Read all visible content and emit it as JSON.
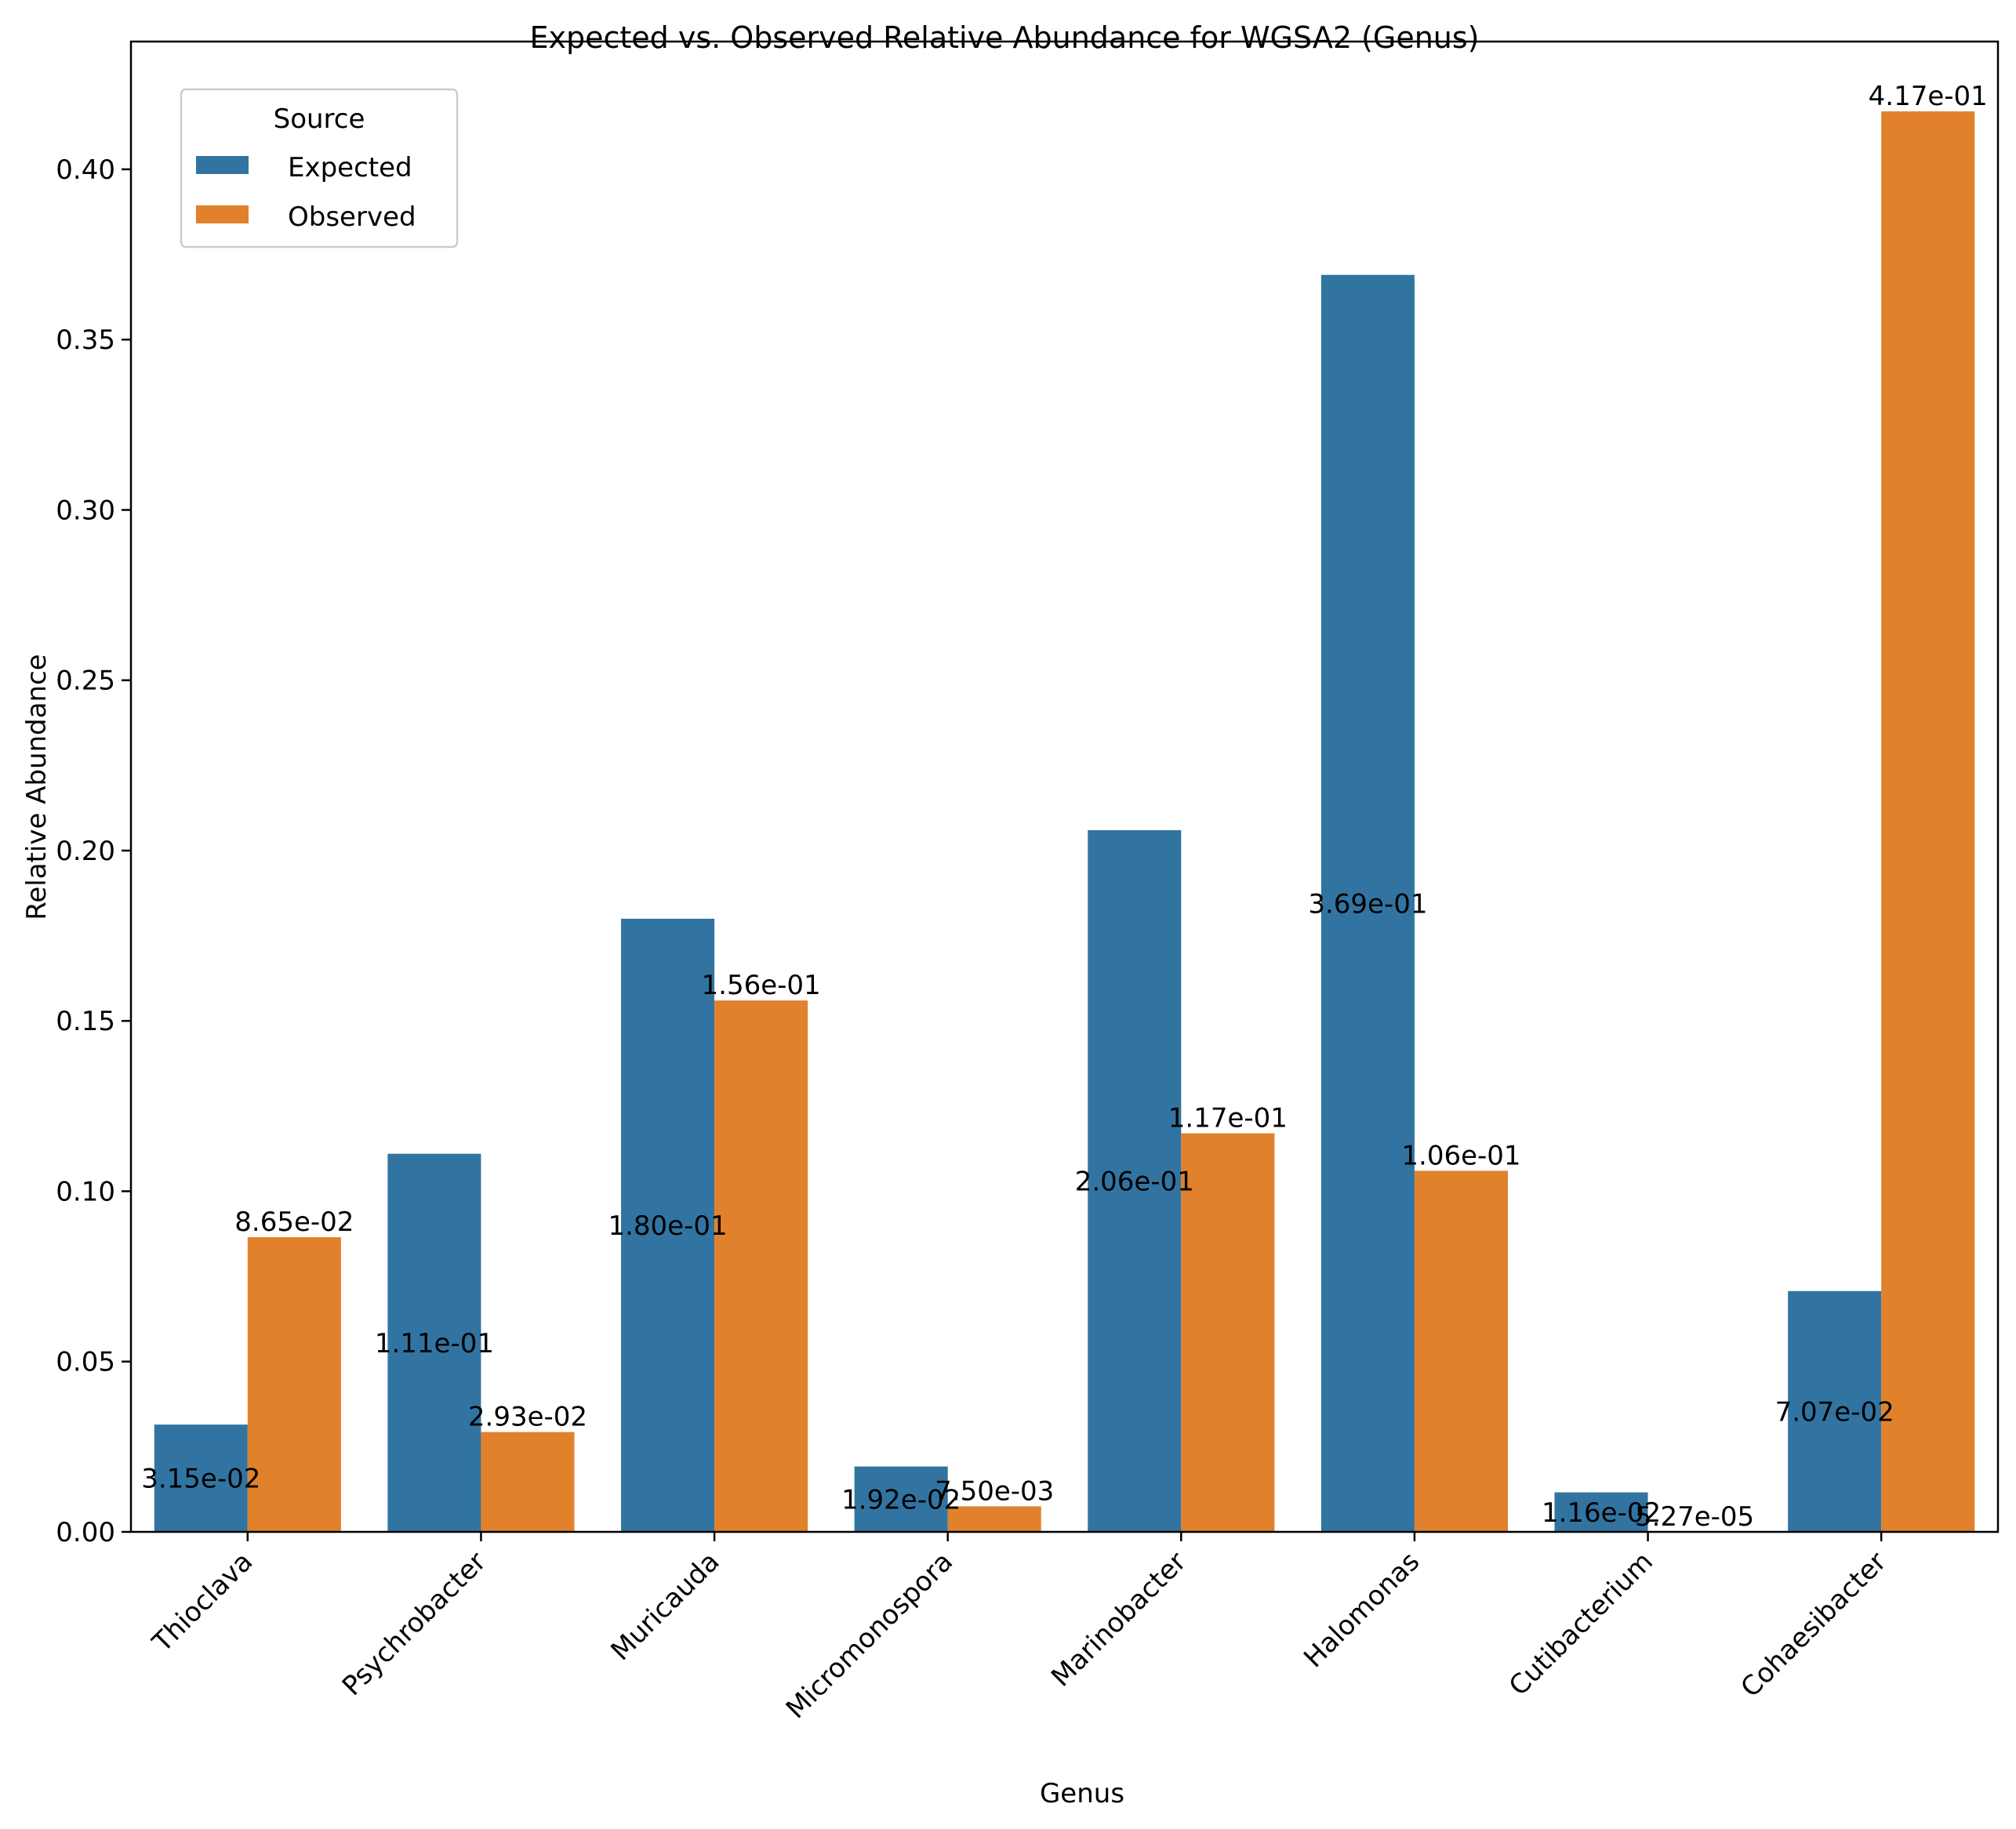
{
  "chart_data": {
    "type": "bar",
    "title": "Expected vs. Observed Relative Abundance for WGSA2 (Genus)",
    "xlabel": "Genus",
    "ylabel": "Relative Abundance",
    "ylim": [
      0,
      0.4375
    ],
    "yticks": [
      0.0,
      0.05,
      0.1,
      0.15,
      0.2,
      0.25,
      0.3,
      0.35,
      0.4
    ],
    "ytick_labels": [
      "0.00",
      "0.05",
      "0.10",
      "0.15",
      "0.20",
      "0.25",
      "0.30",
      "0.35",
      "0.40"
    ],
    "grid": false,
    "legend": {
      "title": "Source",
      "position": "top-left"
    },
    "categories": [
      "Thioclava",
      "Psychrobacter",
      "Muricauda",
      "Micromonospora",
      "Marinobacter",
      "Halomonas",
      "Cutibacterium",
      "Cohaesibacter"
    ],
    "series": [
      {
        "name": "Expected",
        "color": "#3274a1",
        "values": [
          0.0315,
          0.111,
          0.18,
          0.0192,
          0.206,
          0.369,
          0.0116,
          0.0707
        ],
        "labels": [
          "3.15e-02",
          "1.11e-01",
          "1.80e-01",
          "1.92e-02",
          "2.06e-01",
          "3.69e-01",
          "1.16e-02",
          "7.07e-02"
        ]
      },
      {
        "name": "Observed",
        "color": "#e1812c",
        "values": [
          0.0865,
          0.0293,
          0.156,
          0.0075,
          0.117,
          0.106,
          5.27e-05,
          0.417
        ],
        "labels": [
          "8.65e-02",
          "2.93e-02",
          "1.56e-01",
          "7.50e-03",
          "1.17e-01",
          "1.06e-01",
          "5.27e-05",
          "4.17e-01"
        ]
      }
    ]
  }
}
